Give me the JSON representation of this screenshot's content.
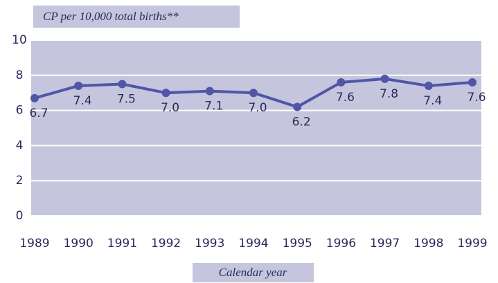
{
  "chart_data": {
    "type": "line",
    "title": "CP per 10,000 total births**",
    "x_label": "Calendar year",
    "categories": [
      "1989",
      "1990",
      "1991",
      "1992",
      "1993",
      "1994",
      "1995",
      "1996",
      "1997",
      "1998",
      "1999"
    ],
    "values": [
      6.7,
      7.4,
      7.5,
      7.0,
      7.1,
      7.0,
      6.2,
      7.6,
      7.8,
      7.4,
      7.6
    ],
    "value_labels": [
      "6.7",
      "7.4",
      "7.5",
      "7.0",
      "7.1",
      "7.0",
      "6.2",
      "7.6",
      "7.8",
      "7.4",
      "7.6"
    ],
    "color": "#4f56a6",
    "ylim": [
      0,
      10
    ],
    "yticks": [
      0,
      2,
      4,
      6,
      8,
      10
    ],
    "grid": true
  }
}
